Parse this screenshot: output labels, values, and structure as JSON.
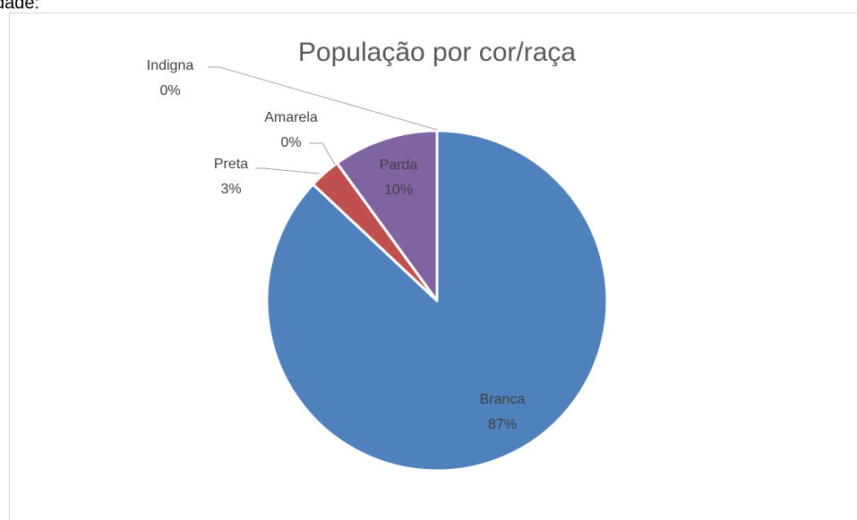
{
  "page_text": "dade:",
  "chart_data": {
    "type": "pie",
    "title": "População por cor/raça",
    "categories": [
      "Branca",
      "Preta",
      "Amarela",
      "Parda",
      "Indigna"
    ],
    "values": [
      87,
      3,
      0,
      10,
      0
    ],
    "value_labels": [
      "87%",
      "3%",
      "0%",
      "10%",
      "0%"
    ],
    "colors": [
      "#4f81bd",
      "#c0504d",
      "#9bbb59",
      "#8064a2",
      "#4bacc6"
    ]
  }
}
